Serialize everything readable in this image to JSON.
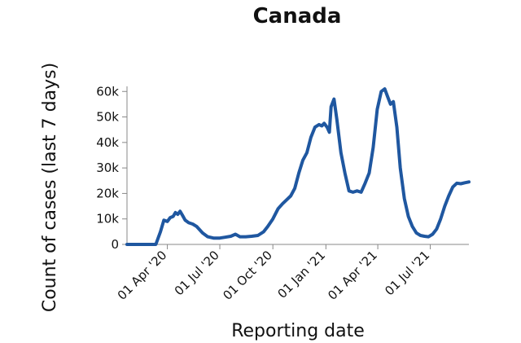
{
  "chart_data": {
    "type": "line",
    "title": "Canada",
    "xlabel": "Reporting date",
    "ylabel": "Count of cases (last 7 days)",
    "xlim": [
      "2020-01-22",
      "2021-09-06"
    ],
    "ylim": [
      0,
      62000
    ],
    "y_ticks": [
      {
        "value": 0,
        "label": "0"
      },
      {
        "value": 10000,
        "label": "10k"
      },
      {
        "value": 20000,
        "label": "20k"
      },
      {
        "value": 30000,
        "label": "30k"
      },
      {
        "value": 40000,
        "label": "40k"
      },
      {
        "value": 50000,
        "label": "50k"
      },
      {
        "value": 60000,
        "label": "60k"
      }
    ],
    "x_ticks": [
      {
        "value": "2020-04-01",
        "label": "01 Apr '20"
      },
      {
        "value": "2020-07-01",
        "label": "01 Jul '20"
      },
      {
        "value": "2020-10-01",
        "label": "01 Oct '20"
      },
      {
        "value": "2021-01-01",
        "label": "01 Jan '21"
      },
      {
        "value": "2021-04-01",
        "label": "01 Apr '21"
      },
      {
        "value": "2021-07-01",
        "label": "01 Jul '21"
      }
    ],
    "grid": false,
    "series": [
      {
        "color": "#1f57a0",
        "x": [
          "2020-01-22",
          "2020-03-12",
          "2020-03-20",
          "2020-03-26",
          "2020-04-01",
          "2020-04-06",
          "2020-04-11",
          "2020-04-15",
          "2020-04-19",
          "2020-04-23",
          "2020-04-27",
          "2020-05-02",
          "2020-05-08",
          "2020-05-15",
          "2020-05-22",
          "2020-06-01",
          "2020-06-10",
          "2020-06-20",
          "2020-07-01",
          "2020-07-10",
          "2020-07-20",
          "2020-07-28",
          "2020-08-05",
          "2020-08-15",
          "2020-08-25",
          "2020-09-05",
          "2020-09-15",
          "2020-09-22",
          "2020-10-01",
          "2020-10-10",
          "2020-10-18",
          "2020-10-25",
          "2020-11-01",
          "2020-11-08",
          "2020-11-15",
          "2020-11-22",
          "2020-11-29",
          "2020-12-06",
          "2020-12-13",
          "2020-12-20",
          "2020-12-25",
          "2020-12-29",
          "2021-01-03",
          "2021-01-07",
          "2021-01-10",
          "2021-01-15",
          "2021-01-20",
          "2021-01-27",
          "2021-02-03",
          "2021-02-10",
          "2021-02-17",
          "2021-02-24",
          "2021-03-03",
          "2021-03-10",
          "2021-03-17",
          "2021-03-24",
          "2021-03-31",
          "2021-04-07",
          "2021-04-13",
          "2021-04-18",
          "2021-04-23",
          "2021-04-28",
          "2021-05-04",
          "2021-05-10",
          "2021-05-17",
          "2021-05-24",
          "2021-05-31",
          "2021-06-07",
          "2021-06-14",
          "2021-06-21",
          "2021-06-28",
          "2021-07-05",
          "2021-07-12",
          "2021-07-19",
          "2021-07-26",
          "2021-08-02",
          "2021-08-09",
          "2021-08-16",
          "2021-08-23",
          "2021-08-30",
          "2021-09-06"
        ],
        "y": [
          0,
          0,
          5000,
          9500,
          9000,
          10500,
          11000,
          12500,
          11800,
          13000,
          11500,
          9500,
          8500,
          8000,
          7000,
          4500,
          3000,
          2500,
          2500,
          2800,
          3200,
          4000,
          3000,
          3000,
          3200,
          3500,
          5000,
          7000,
          10000,
          14000,
          16000,
          17500,
          19000,
          22000,
          28000,
          33000,
          36000,
          42000,
          46000,
          47000,
          46500,
          47500,
          46000,
          44000,
          54000,
          57000,
          49000,
          36000,
          28000,
          21000,
          20500,
          21000,
          20500,
          24000,
          28000,
          38000,
          53000,
          60000,
          61000,
          58000,
          55000,
          56000,
          46000,
          30000,
          18000,
          11000,
          7000,
          4500,
          3500,
          3200,
          3000,
          4000,
          6000,
          10000,
          15000,
          19000,
          22500,
          24000,
          23800,
          24200,
          24500
        ]
      }
    ]
  }
}
